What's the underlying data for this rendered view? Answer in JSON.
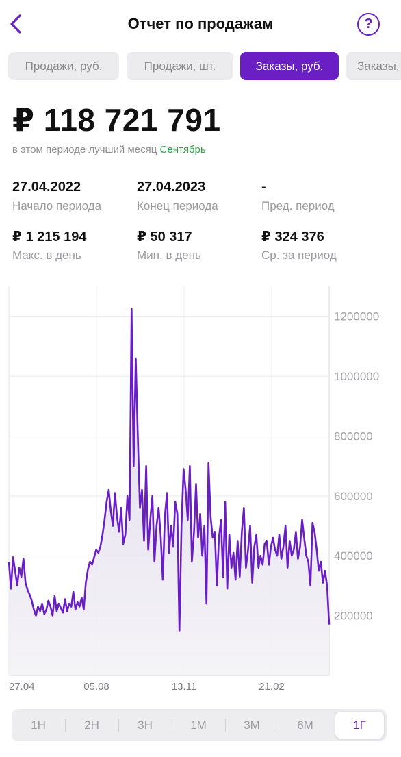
{
  "header": {
    "title": "Отчет по продажам",
    "back_icon": "chevron-left-icon",
    "help_label": "?"
  },
  "tabs": [
    {
      "label": "Продажи, руб.",
      "active": false
    },
    {
      "label": "Продажи, шт.",
      "active": false
    },
    {
      "label": "Заказы, руб.",
      "active": true
    },
    {
      "label": "Заказы, шт.",
      "active": false
    }
  ],
  "summary": {
    "total": "₽ 118 721 791",
    "best_month_prefix": "в этом периоде лучший месяц",
    "best_month": "Сентябрь"
  },
  "stats": [
    {
      "value": "27.04.2022",
      "label": "Начало периода"
    },
    {
      "value": "27.04.2023",
      "label": "Конец периода"
    },
    {
      "value": "-",
      "label": "Пред. период"
    },
    {
      "value": "₽ 1 215 194",
      "label": "Макс. в день"
    },
    {
      "value": "₽ 50 317",
      "label": "Мин. в день"
    },
    {
      "value": "₽ 324 376",
      "label": "Ср. за период"
    }
  ],
  "colors": {
    "accent": "#6a1fc4",
    "line": "#6a1fc4",
    "best_month": "#2f9e44"
  },
  "chart_data": {
    "type": "area",
    "ylim": [
      0,
      1300000
    ],
    "yticks": [
      200000,
      400000,
      600000,
      800000,
      1000000,
      1200000
    ],
    "ytick_labels": [
      "200000",
      "400000",
      "600000",
      "800000",
      "1000000",
      "1200000"
    ],
    "xtick_labels": [
      "27.04",
      "05.08",
      "13.11",
      "21.02"
    ],
    "grid": true,
    "series": [
      {
        "values": [
          380000,
          290000,
          395000,
          350000,
          300000,
          360000,
          330000,
          390000,
          310000,
          285000,
          270000,
          250000,
          220000,
          200000,
          230000,
          215000,
          240000,
          205000,
          220000,
          250000,
          230000,
          200000,
          265000,
          215000,
          240000,
          225000,
          210000,
          255000,
          215000,
          240000,
          230000,
          280000,
          220000,
          245000,
          230000,
          260000,
          220000,
          310000,
          355000,
          380000,
          370000,
          395000,
          420000,
          410000,
          430000,
          470000,
          520000,
          580000,
          620000,
          550000,
          500000,
          610000,
          530000,
          480000,
          560000,
          440000,
          470000,
          600000,
          520000,
          1225000,
          700000,
          1060000,
          800000,
          560000,
          620000,
          450000,
          700000,
          420000,
          520000,
          600000,
          380000,
          500000,
          560000,
          470000,
          320000,
          530000,
          610000,
          410000,
          500000,
          430000,
          580000,
          540000,
          150000,
          500000,
          690000,
          620000,
          520000,
          700000,
          380000,
          480000,
          640000,
          460000,
          540000,
          400000,
          500000,
          240000,
          710000,
          530000,
          460000,
          480000,
          300000,
          460000,
          520000,
          330000,
          580000,
          290000,
          470000,
          360000,
          410000,
          320000,
          450000,
          330000,
          480000,
          560000,
          360000,
          420000,
          500000,
          310000,
          430000,
          470000,
          360000,
          400000,
          370000,
          440000,
          450000,
          370000,
          430000,
          460000,
          420000,
          400000,
          470000,
          390000,
          430000,
          500000,
          360000,
          450000,
          400000,
          420000,
          480000,
          390000,
          430000,
          520000,
          460000,
          400000,
          380000,
          300000,
          510000,
          480000,
          420000,
          350000,
          380000,
          310000,
          350000,
          300000,
          170000
        ]
      }
    ]
  },
  "range_selector": {
    "options": [
      {
        "label": "1Н",
        "active": false
      },
      {
        "label": "2Н",
        "active": false
      },
      {
        "label": "3Н",
        "active": false
      },
      {
        "label": "1М",
        "active": false
      },
      {
        "label": "3М",
        "active": false
      },
      {
        "label": "6М",
        "active": false
      },
      {
        "label": "1Г",
        "active": true
      }
    ]
  }
}
